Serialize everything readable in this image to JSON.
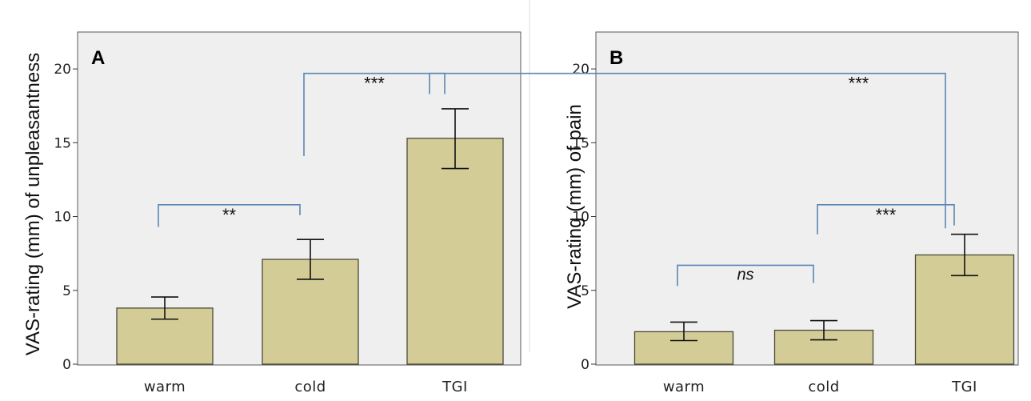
{
  "chart_data": [
    {
      "type": "bar",
      "panel_label": "A",
      "title": "",
      "xlabel": "",
      "ylabel": "VAS-rating (mm) of unpleasantness",
      "categories": [
        "warm",
        "cold",
        "TGI"
      ],
      "values": [
        3.8,
        7.1,
        15.3
      ],
      "error_low": [
        3.05,
        5.75,
        13.25
      ],
      "error_high": [
        4.55,
        8.45,
        17.3
      ],
      "ylim": [
        0,
        22.5
      ],
      "yticks": [
        0,
        5,
        10,
        15,
        20
      ],
      "ytick_labels": [
        "0",
        "5",
        "10",
        "15",
        "20"
      ],
      "grid": false,
      "annotations": [
        {
          "from": "warm",
          "to": "cold",
          "text": "**",
          "y": 10.8,
          "start_y": 9.3,
          "end_y": 10.1
        },
        {
          "from": "cold",
          "to": "TGI",
          "text": "***",
          "y": 19.7,
          "start_y": 14.1,
          "end_y": 18.3
        }
      ]
    },
    {
      "type": "bar",
      "panel_label": "B",
      "title": "",
      "xlabel": "",
      "ylabel": "VAS-rating (mm) of pain",
      "categories": [
        "warm",
        "cold",
        "TGI"
      ],
      "values": [
        2.2,
        2.3,
        7.4
      ],
      "error_low": [
        1.6,
        1.65,
        6.0
      ],
      "error_high": [
        2.85,
        2.95,
        8.8
      ],
      "ylim": [
        0,
        22.5
      ],
      "yticks": [
        0,
        5,
        10,
        15,
        20
      ],
      "ytick_labels": [
        "0",
        "5",
        "10",
        "15",
        "20"
      ],
      "grid": false,
      "annotations": [
        {
          "from": "warm",
          "to": "cold",
          "text": "ns",
          "y": 6.7,
          "start_y": 5.3,
          "end_y": 5.5
        },
        {
          "from": "cold",
          "to": "TGI",
          "text": "***",
          "y": 10.8,
          "start_y": 8.8,
          "end_y": 9.4
        }
      ]
    }
  ],
  "cross_annotation": {
    "text": "***",
    "y_value": 19.7,
    "start_y_value": 18.3,
    "end_y_value": 9.2
  }
}
